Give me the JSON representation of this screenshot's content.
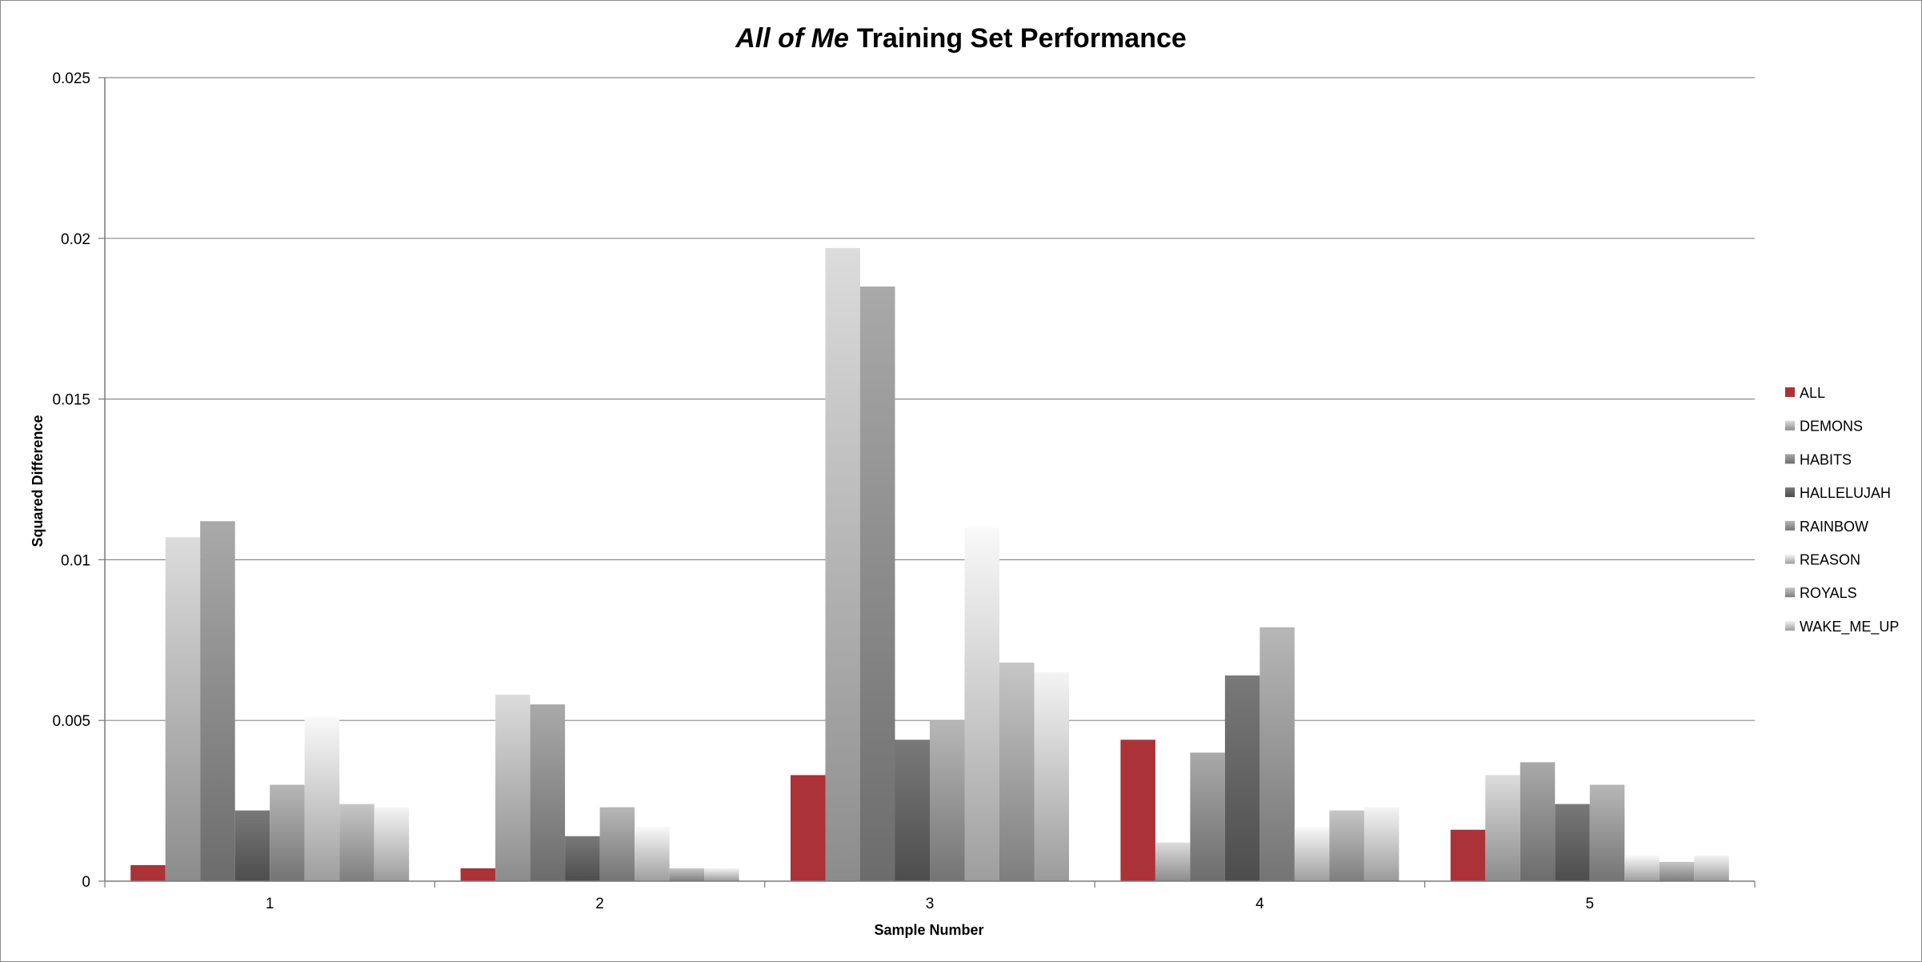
{
  "chart_data": {
    "type": "bar",
    "title": "Training Set Performance",
    "title_italic": "All of Me",
    "xlabel": "Sample Number",
    "ylabel": "Squared Difference",
    "ylim": [
      0,
      0.025
    ],
    "yticks": [
      "0",
      "0.005",
      "0.01",
      "0.015",
      "0.02",
      "0.025"
    ],
    "categories": [
      "1",
      "2",
      "3",
      "4",
      "5"
    ],
    "grid": true,
    "legend_position": "right",
    "series": [
      {
        "name": "ALL",
        "values": [
          0.0005,
          0.0004,
          0.0033,
          0.0044,
          0.0016
        ],
        "color": "#ab3237"
      },
      {
        "name": "DEMONS",
        "values": [
          0.0107,
          0.0058,
          0.0197,
          0.0012,
          0.0033
        ],
        "color": "#c8c8c8"
      },
      {
        "name": "HABITS",
        "values": [
          0.0112,
          0.0055,
          0.0185,
          0.004,
          0.0037
        ],
        "color": "#9a9a9a"
      },
      {
        "name": "HALLELUJAH",
        "values": [
          0.0022,
          0.0014,
          0.0044,
          0.0064,
          0.0024
        ],
        "color": "#6e6e6e"
      },
      {
        "name": "RAINBOW",
        "values": [
          0.003,
          0.0023,
          0.005,
          0.0079,
          0.003
        ],
        "color": "#a6a6a6"
      },
      {
        "name": "REASON",
        "values": [
          0.0051,
          0.0017,
          0.011,
          0.0017,
          0.0008
        ],
        "color": "#e2e2e2"
      },
      {
        "name": "ROYALS",
        "values": [
          0.0024,
          0.0004,
          0.0068,
          0.0022,
          0.0006
        ],
        "color": "#b4b4b4"
      },
      {
        "name": "WAKE_ME_UP",
        "values": [
          0.0023,
          0.0004,
          0.0065,
          0.0023,
          0.0008
        ],
        "color": "#dedede"
      }
    ]
  }
}
